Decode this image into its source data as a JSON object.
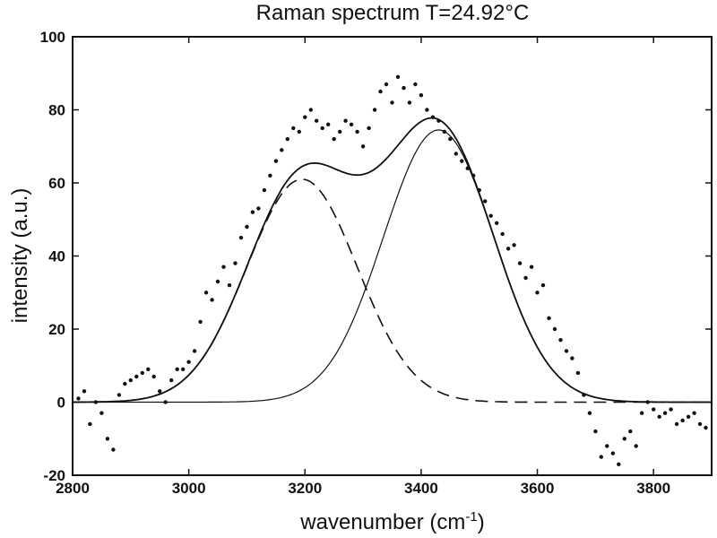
{
  "chart_data": {
    "type": "scatter",
    "title": "Raman spectrum T=24.92°C",
    "xlabel_main": "wavenumber (cm",
    "xlabel_sup": "-1",
    "xlabel_close": ")",
    "ylabel": "intensity (a.u.)",
    "xlim": [
      2800,
      3900
    ],
    "ylim": [
      -20,
      100
    ],
    "xticks": [
      2800,
      3000,
      3200,
      3400,
      3600,
      3800
    ],
    "yticks": [
      -20,
      0,
      20,
      40,
      60,
      80,
      100
    ],
    "grid": false,
    "legend": "none",
    "series": [
      {
        "kind": "points",
        "x": [
          2810,
          2820,
          2830,
          2840,
          2850,
          2860,
          2870,
          2880,
          2890,
          2900,
          2910,
          2920,
          2930,
          2940,
          2950,
          2960,
          2970,
          2980,
          2990,
          3000,
          3010,
          3020,
          3030,
          3040,
          3050,
          3060,
          3070,
          3080,
          3090,
          3100,
          3110,
          3120,
          3130,
          3140,
          3150,
          3160,
          3170,
          3180,
          3190,
          3200,
          3210,
          3220,
          3230,
          3240,
          3250,
          3260,
          3270,
          3280,
          3290,
          3300,
          3310,
          3320,
          3330,
          3340,
          3350,
          3360,
          3370,
          3380,
          3390,
          3400,
          3410,
          3420,
          3430,
          3440,
          3450,
          3460,
          3470,
          3480,
          3490,
          3500,
          3510,
          3520,
          3530,
          3540,
          3550,
          3560,
          3570,
          3580,
          3590,
          3600,
          3610,
          3620,
          3630,
          3640,
          3650,
          3660,
          3670,
          3680,
          3690,
          3700,
          3710,
          3720,
          3730,
          3740,
          3750,
          3760,
          3770,
          3780,
          3790,
          3800,
          3810,
          3820,
          3830,
          3840,
          3850,
          3860,
          3870,
          3880,
          3890
        ],
        "y": [
          1,
          3,
          -6,
          0,
          -3,
          -10,
          -13,
          2,
          5,
          6,
          7,
          8,
          9,
          7,
          3,
          0,
          6,
          9,
          9,
          11,
          14,
          22,
          30,
          28,
          33,
          37,
          32,
          38,
          45,
          48,
          52,
          53,
          58,
          62,
          66,
          69,
          72,
          75,
          74,
          78,
          80,
          77,
          75,
          76,
          72,
          74,
          77,
          76,
          74,
          70,
          75,
          80,
          85,
          87,
          82,
          89,
          86,
          82,
          87,
          84,
          80,
          78,
          77,
          74,
          72,
          68,
          66,
          64,
          62,
          58,
          55,
          51,
          49,
          46,
          42,
          43,
          38,
          34,
          37,
          30,
          32,
          23,
          20,
          17,
          14,
          12,
          8,
          2,
          -3,
          -8,
          -15,
          -12,
          -14,
          -17,
          -10,
          -8,
          -12,
          -3,
          0,
          -2,
          -4,
          -3,
          -2,
          -6,
          -5,
          -4,
          -3,
          -6,
          -7
        ]
      },
      {
        "kind": "total-fit",
        "peaks": [
          [
            3195,
            61,
            95
          ],
          [
            3430,
            74.5,
            95
          ]
        ]
      },
      {
        "kind": "component-left-dashed",
        "peak": [
          3195,
          61,
          95
        ]
      },
      {
        "kind": "component-right-solid",
        "peak": [
          3430,
          74.5,
          95
        ]
      }
    ]
  }
}
